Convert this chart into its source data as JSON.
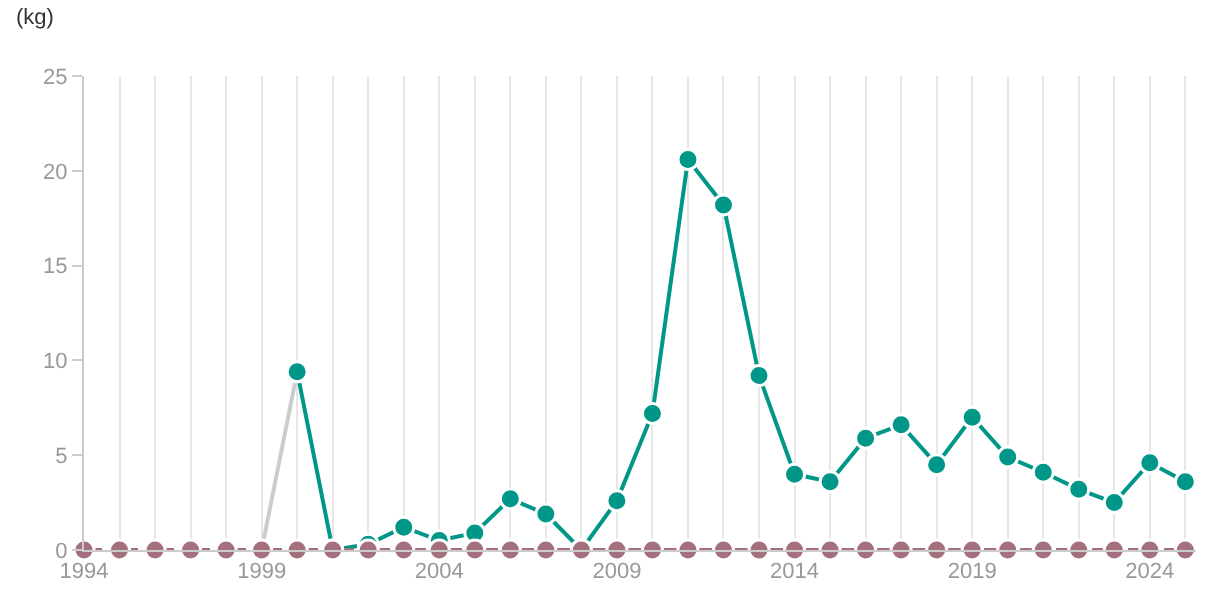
{
  "chart_data": {
    "type": "line",
    "ylabel": "(kg)",
    "x": [
      1994,
      1995,
      1996,
      1997,
      1998,
      1999,
      2000,
      2001,
      2002,
      2003,
      2004,
      2005,
      2006,
      2007,
      2008,
      2009,
      2010,
      2011,
      2012,
      2013,
      2014,
      2015,
      2016,
      2017,
      2018,
      2019,
      2020,
      2021,
      2022,
      2023,
      2024,
      2025
    ],
    "series": [
      {
        "color": "#cccccc",
        "x": [
          1999,
          2000
        ],
        "values": [
          0,
          9.4
        ],
        "marker": "none"
      },
      {
        "color": "#009688",
        "values": [
          null,
          null,
          null,
          null,
          null,
          null,
          9.4,
          0,
          0.3,
          1.2,
          0.5,
          0.9,
          2.7,
          1.9,
          0,
          2.6,
          7.2,
          20.6,
          18.2,
          9.2,
          4.0,
          3.6,
          5.9,
          6.6,
          4.5,
          7.0,
          4.9,
          4.1,
          3.2,
          2.5,
          4.6,
          3.6
        ]
      },
      {
        "color": "#a5707d",
        "line_style": "dashed",
        "values": [
          0,
          0,
          0,
          0,
          0,
          0,
          0,
          0,
          0,
          0,
          0,
          0,
          0,
          0,
          0,
          0,
          0,
          0,
          0,
          0,
          0,
          0,
          0,
          0,
          0,
          0,
          0,
          0,
          0,
          0,
          0,
          0
        ]
      }
    ],
    "xlim": [
      1994,
      2025.3
    ],
    "xticks": [
      1994,
      {
        "value": 1995,
        "label": null
      },
      {
        "value": 1996,
        "label": null
      },
      {
        "value": 1997,
        "label": null
      },
      {
        "value": 1998,
        "label": null
      },
      1999,
      {
        "value": 2000,
        "label": null
      },
      {
        "value": 2001,
        "label": null
      },
      {
        "value": 2002,
        "label": null
      },
      {
        "value": 2003,
        "label": null
      },
      2004,
      {
        "value": 2005,
        "label": null
      },
      {
        "value": 2006,
        "label": null
      },
      {
        "value": 2007,
        "label": null
      },
      {
        "value": 2008,
        "label": null
      },
      2009,
      {
        "value": 2010,
        "label": null
      },
      {
        "value": 2011,
        "label": null
      },
      {
        "value": 2012,
        "label": null
      },
      {
        "value": 2013,
        "label": null
      },
      2014,
      {
        "value": 2015,
        "label": null
      },
      {
        "value": 2016,
        "label": null
      },
      {
        "value": 2017,
        "label": null
      },
      {
        "value": 2018,
        "label": null
      },
      2019,
      {
        "value": 2020,
        "label": null
      },
      {
        "value": 2021,
        "label": null
      },
      {
        "value": 2022,
        "label": null
      },
      {
        "value": 2023,
        "label": null
      },
      2024,
      {
        "value": 2025,
        "label": null
      }
    ],
    "ylim": [
      0,
      25
    ],
    "yticks": [
      0,
      5,
      10,
      15,
      20,
      25
    ],
    "grid": "x",
    "marker": "circle",
    "line_style": "solid"
  }
}
